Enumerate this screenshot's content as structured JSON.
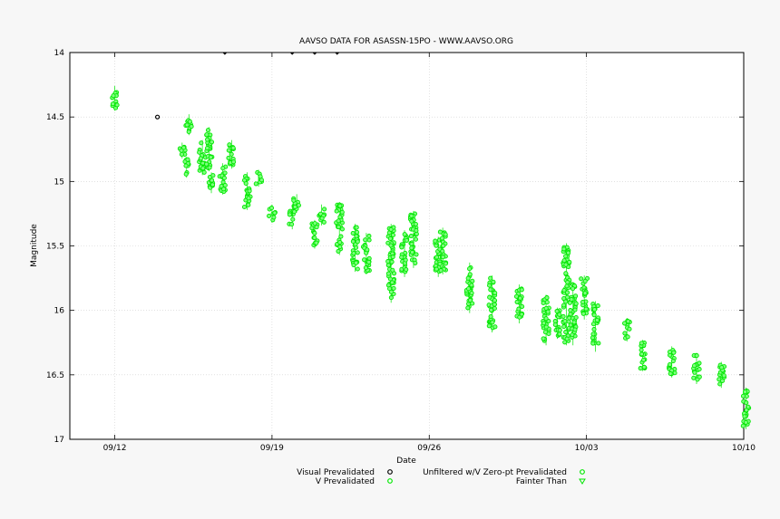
{
  "chart_data": {
    "type": "scatter",
    "title": "AAVSO DATA FOR ASASSN-15PO - WWW.AAVSO.ORG",
    "xlabel": "Date",
    "ylabel": "Magnitude",
    "ylim": [
      14,
      17
    ],
    "y_inverted": true,
    "xlim": [
      "2015-09-10",
      "2015-10-10"
    ],
    "x_ticks": [
      "09/12",
      "09/19",
      "09/26",
      "10/03",
      "10/10"
    ],
    "y_ticks": [
      "14",
      "14.5",
      "15",
      "15.5",
      "16",
      "16.5",
      "17"
    ],
    "grid": true,
    "legend_position": "bottom-center",
    "legend": [
      {
        "label": "Visual Prevalidated",
        "marker": "circle",
        "color": "#000000"
      },
      {
        "label": "Unfiltered w/V Zero-pt Prevalidated",
        "marker": "circle",
        "color": "#00e600"
      },
      {
        "label": "V Prevalidated",
        "marker": "circle",
        "color": "#00e600"
      },
      {
        "label": "Fainter Than",
        "marker": "triangle-down",
        "color": "#00e600"
      }
    ],
    "series": [
      {
        "name": "Visual Prevalidated",
        "color": "#000000",
        "points": [
          {
            "x": "2015-09-13.9",
            "y": 14.5
          }
        ]
      },
      {
        "name": "Fainter Than",
        "color": "#000000",
        "points": [
          {
            "x": "2015-09-16.9",
            "y": 14.0
          },
          {
            "x": "2015-09-19.9",
            "y": 14.0
          },
          {
            "x": "2015-09-20.9",
            "y": 14.0
          },
          {
            "x": "2015-09-21.9",
            "y": 14.0
          }
        ]
      },
      {
        "name": "Unfiltered w/V Zero-pt Prevalidated",
        "color": "#00e600",
        "clusters": [
          {
            "x": "2015-09-12.0",
            "y_min": 14.28,
            "y_max": 14.43
          },
          {
            "x": "2015-09-15.0",
            "y_min": 14.72,
            "y_max": 14.8
          },
          {
            "x": "2015-09-15.2",
            "y_min": 14.83,
            "y_max": 14.95
          },
          {
            "x": "2015-09-15.3",
            "y_min": 14.5,
            "y_max": 14.62
          },
          {
            "x": "2015-09-15.9",
            "y_min": 14.7,
            "y_max": 14.93
          },
          {
            "x": "2015-09-16.2",
            "y_min": 14.6,
            "y_max": 14.9
          },
          {
            "x": "2015-09-16.3",
            "y_min": 14.95,
            "y_max": 15.07
          },
          {
            "x": "2015-09-16.8",
            "y_min": 14.88,
            "y_max": 15.08
          },
          {
            "x": "2015-09-17.2",
            "y_min": 14.7,
            "y_max": 14.88
          },
          {
            "x": "2015-09-17.9",
            "y_min": 14.95,
            "y_max": 15.2
          },
          {
            "x": "2015-09-18.4",
            "y_min": 14.93,
            "y_max": 15.02
          },
          {
            "x": "2015-09-19.0",
            "y_min": 15.2,
            "y_max": 15.3
          },
          {
            "x": "2015-09-19.9",
            "y_min": 15.22,
            "y_max": 15.35
          },
          {
            "x": "2015-09-20.1",
            "y_min": 15.12,
            "y_max": 15.22
          },
          {
            "x": "2015-09-20.9",
            "y_min": 15.32,
            "y_max": 15.5
          },
          {
            "x": "2015-09-21.2",
            "y_min": 15.2,
            "y_max": 15.32
          },
          {
            "x": "2015-09-22.0",
            "y_min": 15.18,
            "y_max": 15.55
          },
          {
            "x": "2015-09-22.7",
            "y_min": 15.35,
            "y_max": 15.68
          },
          {
            "x": "2015-09-23.2",
            "y_min": 15.42,
            "y_max": 15.7
          },
          {
            "x": "2015-09-24.3",
            "y_min": 15.35,
            "y_max": 15.92
          },
          {
            "x": "2015-09-24.9",
            "y_min": 15.4,
            "y_max": 15.72
          },
          {
            "x": "2015-09-25.3",
            "y_min": 15.25,
            "y_max": 15.65
          },
          {
            "x": "2015-09-26.4",
            "y_min": 15.45,
            "y_max": 15.72
          },
          {
            "x": "2015-09-26.6",
            "y_min": 15.38,
            "y_max": 15.7
          },
          {
            "x": "2015-09-27.8",
            "y_min": 15.65,
            "y_max": 16.0
          },
          {
            "x": "2015-09-28.8",
            "y_min": 15.75,
            "y_max": 16.15
          },
          {
            "x": "2015-09-30.0",
            "y_min": 15.82,
            "y_max": 16.08
          },
          {
            "x": "2015-10-01.2",
            "y_min": 15.9,
            "y_max": 16.25
          },
          {
            "x": "2015-10-01.7",
            "y_min": 16.0,
            "y_max": 16.2
          },
          {
            "x": "2015-10-02.1",
            "y_min": 15.5,
            "y_max": 16.25
          },
          {
            "x": "2015-10-02.4",
            "y_min": 15.8,
            "y_max": 16.25
          },
          {
            "x": "2015-10-02.9",
            "y_min": 15.75,
            "y_max": 16.05
          },
          {
            "x": "2015-10-03.4",
            "y_min": 15.95,
            "y_max": 16.3
          },
          {
            "x": "2015-10-04.8",
            "y_min": 16.08,
            "y_max": 16.22
          },
          {
            "x": "2015-10-05.5",
            "y_min": 16.25,
            "y_max": 16.45
          },
          {
            "x": "2015-10-06.8",
            "y_min": 16.3,
            "y_max": 16.5
          },
          {
            "x": "2015-10-07.9",
            "y_min": 16.35,
            "y_max": 16.55
          },
          {
            "x": "2015-10-09.0",
            "y_min": 16.42,
            "y_max": 16.58
          },
          {
            "x": "2015-10-10.1",
            "y_min": 16.62,
            "y_max": 16.9
          }
        ]
      }
    ]
  }
}
